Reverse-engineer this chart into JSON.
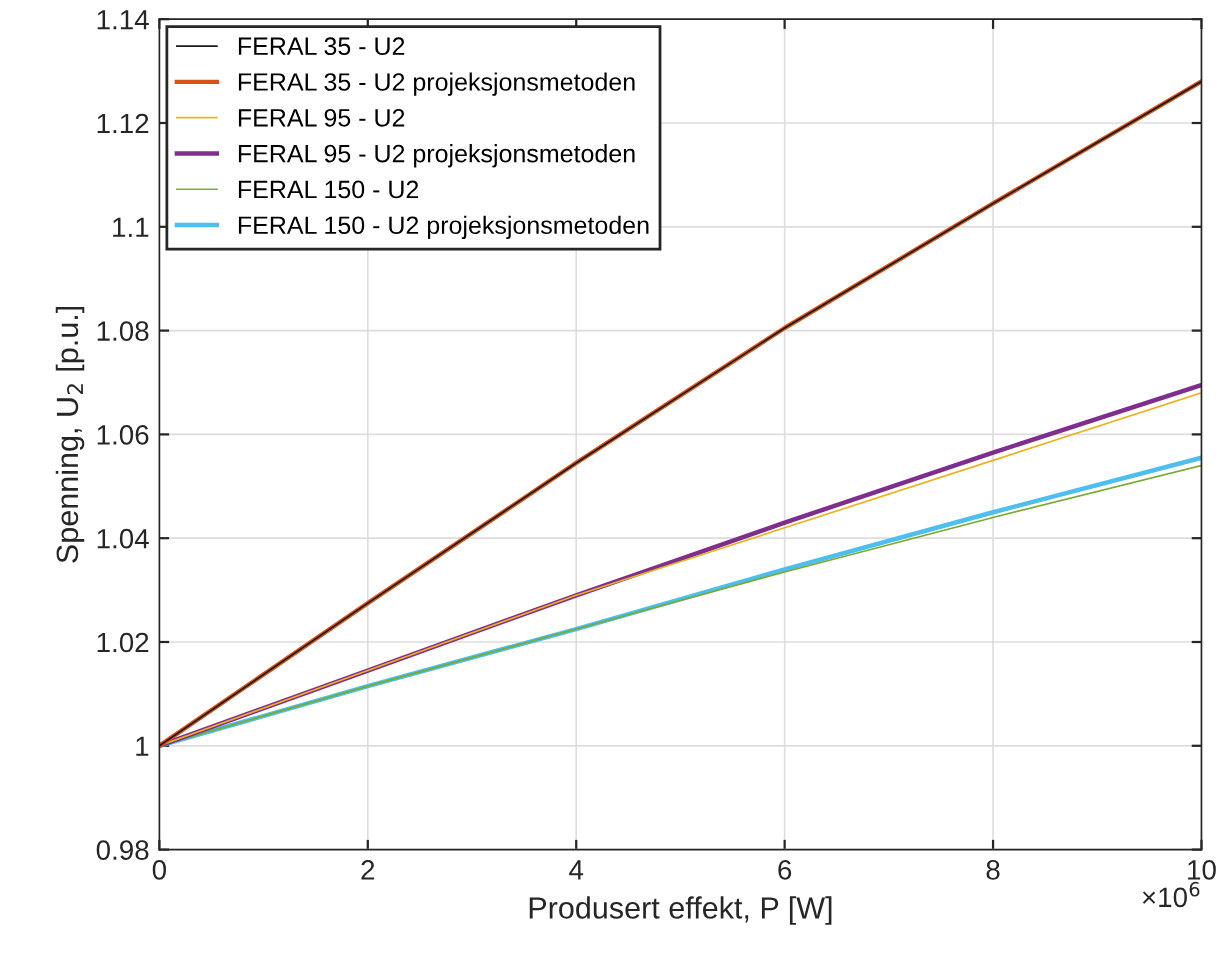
{
  "chart_data": {
    "type": "line",
    "xlabel": "Produsert effekt, P [W]",
    "ylabel": "Spenning, U$_{2}$ [p.u.]",
    "x": [
      0,
      2,
      4,
      6,
      8,
      10
    ],
    "series": [
      {
        "name": "FERAL 35 - U2",
        "color": "#1a1a1a",
        "values": [
          1.0,
          1.0275,
          1.0545,
          1.0805,
          1.1045,
          1.128
        ]
      },
      {
        "name": "FERAL 35 - U2 projeksjonsmetoden",
        "color": "#d95319",
        "values": [
          1.0,
          1.0275,
          1.0545,
          1.0805,
          1.1045,
          1.128
        ]
      },
      {
        "name": "FERAL 95 - U2",
        "color": "#edb120",
        "values": [
          1.0,
          1.0145,
          1.029,
          1.042,
          1.055,
          1.068
        ]
      },
      {
        "name": "FERAL 95 - U2 projeksjonsmetoden",
        "color": "#7e2f8e",
        "values": [
          1.0,
          1.0145,
          1.029,
          1.043,
          1.0565,
          1.0695
        ]
      },
      {
        "name": "FERAL 150 - U2",
        "color": "#77ac30",
        "values": [
          1.0,
          1.0115,
          1.0225,
          1.0335,
          1.044,
          1.054
        ]
      },
      {
        "name": "FERAL 150 - U2 projeksjonsmetoden",
        "color": "#4dbeee",
        "values": [
          1.0,
          1.0115,
          1.0225,
          1.034,
          1.045,
          1.0555
        ]
      }
    ],
    "xlim": [
      0,
      10
    ],
    "xticks": [
      0,
      2,
      4,
      6,
      8,
      10
    ],
    "ylim": [
      0.98,
      1.14
    ],
    "yticks": [
      0.98,
      1,
      1.02,
      1.04,
      1.06,
      1.08,
      1.1,
      1.12,
      1.14
    ],
    "annotations": [
      "×10$^{6}$"
    ],
    "grid": true,
    "legend": "top left",
    "marker": "none",
    "line_style": "solid"
  }
}
